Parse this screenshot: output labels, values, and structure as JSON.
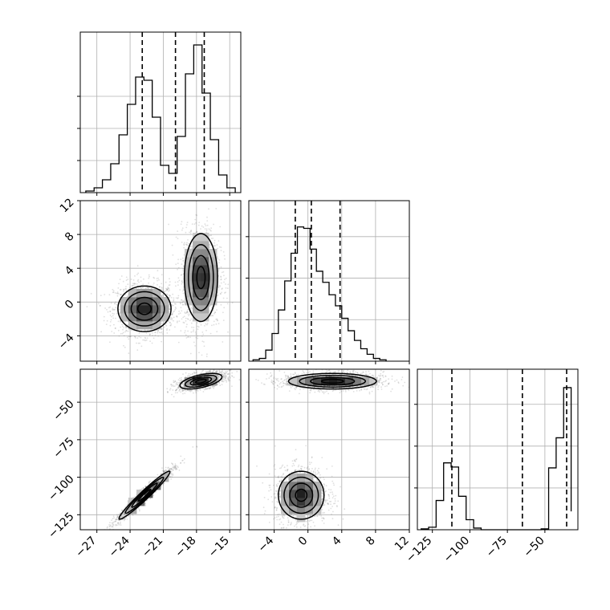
{
  "chart_data": {
    "type": "corner",
    "colors": {
      "ink": "#000000",
      "grid": "#b0b0b0",
      "scatter": "#808080"
    },
    "grid": true,
    "parameters": [
      {
        "axis_range": [
          -28.5,
          -14.0
        ],
        "ticks": [
          -27,
          -24,
          -21,
          -18,
          -15
        ],
        "tick_labels": [
          "−27",
          "−24",
          "−21",
          "−18",
          "−15"
        ]
      },
      {
        "axis_range": [
          -7.0,
          12.0
        ],
        "ticks": [
          -4,
          0,
          4,
          8,
          12
        ],
        "tick_labels": [
          "−4",
          "0",
          "4",
          "8",
          "12"
        ]
      },
      {
        "axis_range": [
          -135.0,
          -28.0
        ],
        "ticks": [
          -125,
          -100,
          -75,
          -50
        ],
        "tick_labels": [
          "−125",
          "−100",
          "−75",
          "−50"
        ]
      }
    ],
    "histograms": [
      {
        "param": 0,
        "bin_edges": [
          -28.0,
          -27.25,
          -26.5,
          -25.75,
          -25.0,
          -24.25,
          -23.5,
          -22.75,
          -22.0,
          -21.25,
          -20.5,
          -19.75,
          -19.0,
          -18.25,
          -17.5,
          -16.75,
          -16.0,
          -15.25,
          -14.5
        ],
        "counts": [
          1,
          3,
          8,
          18,
          36,
          55,
          72,
          70,
          47,
          17,
          12,
          35,
          74,
          92,
          62,
          33,
          11,
          3
        ],
        "ylim": [
          0,
          100
        ],
        "yticks": [
          20,
          40,
          60
        ],
        "quantile_lines": [
          -22.9,
          -19.9,
          -17.3
        ]
      },
      {
        "param": 1,
        "bin_edges": [
          -6.5,
          -5.75,
          -5.0,
          -4.25,
          -3.5,
          -2.75,
          -2.0,
          -1.25,
          -0.5,
          0.25,
          1.0,
          1.75,
          2.5,
          3.25,
          4.0,
          4.75,
          5.5,
          6.25,
          7.0,
          7.75,
          8.5,
          9.25
        ],
        "counts": [
          1,
          2,
          8,
          20,
          37,
          58,
          78,
          97,
          96,
          81,
          65,
          57,
          48,
          40,
          31,
          22,
          15,
          9,
          5,
          2,
          1
        ],
        "ylim": [
          0,
          116
        ],
        "yticks": [
          30,
          60,
          90
        ],
        "quantile_lines": [
          -1.5,
          0.4,
          3.8
        ]
      },
      {
        "param": 2,
        "bin_edges": [
          -132.5,
          -127.5,
          -122.5,
          -117.5,
          -112.5,
          -107.5,
          -102.5,
          -97.5,
          -92.5,
          -87.5,
          -82.5,
          -77.5,
          -72.5,
          -67.5,
          -62.5,
          -57.5,
          -52.5,
          -47.5,
          -42.5,
          -37.5,
          -32.5
        ],
        "counts": [
          1,
          3,
          35,
          80,
          75,
          40,
          12,
          2,
          0,
          0,
          0,
          0,
          0,
          0,
          0,
          0,
          1,
          74,
          110,
          170,
          22
        ],
        "ylim": [
          0,
          192
        ],
        "yticks": [
          50,
          100,
          150
        ],
        "quantile_lines": [
          -112.0,
          -65.0,
          -35.5
        ]
      }
    ],
    "density_panels": [
      {
        "x_param": 0,
        "y_param": 1,
        "clusters": [
          {
            "center": [
              -22.7,
              -0.8
            ],
            "sigma": [
              1.2,
              1.35
            ],
            "rho": 0.0,
            "weight": 0.5
          },
          {
            "center": [
              -17.6,
              2.9
            ],
            "sigma": [
              0.75,
              2.6
            ],
            "rho": 0.0,
            "weight": 0.5
          }
        ]
      },
      {
        "x_param": 0,
        "y_param": 2,
        "clusters": [
          {
            "center": [
              -17.6,
              -36.0
            ],
            "sigma": [
              0.95,
              2.6
            ],
            "rho": 0.55,
            "weight": 0.5
          },
          {
            "center": [
              -22.7,
              -112.0
            ],
            "sigma": [
              1.15,
              8.0
            ],
            "rho": 0.97,
            "weight": 0.5
          }
        ]
      },
      {
        "x_param": 1,
        "y_param": 2,
        "clusters": [
          {
            "center": [
              2.9,
              -36.0
            ],
            "sigma": [
              2.6,
              2.6
            ],
            "rho": 0.0,
            "weight": 0.5
          },
          {
            "center": [
              -0.8,
              -112.0
            ],
            "sigma": [
              1.35,
              8.0
            ],
            "rho": 0.0,
            "weight": 0.5
          }
        ]
      }
    ]
  }
}
